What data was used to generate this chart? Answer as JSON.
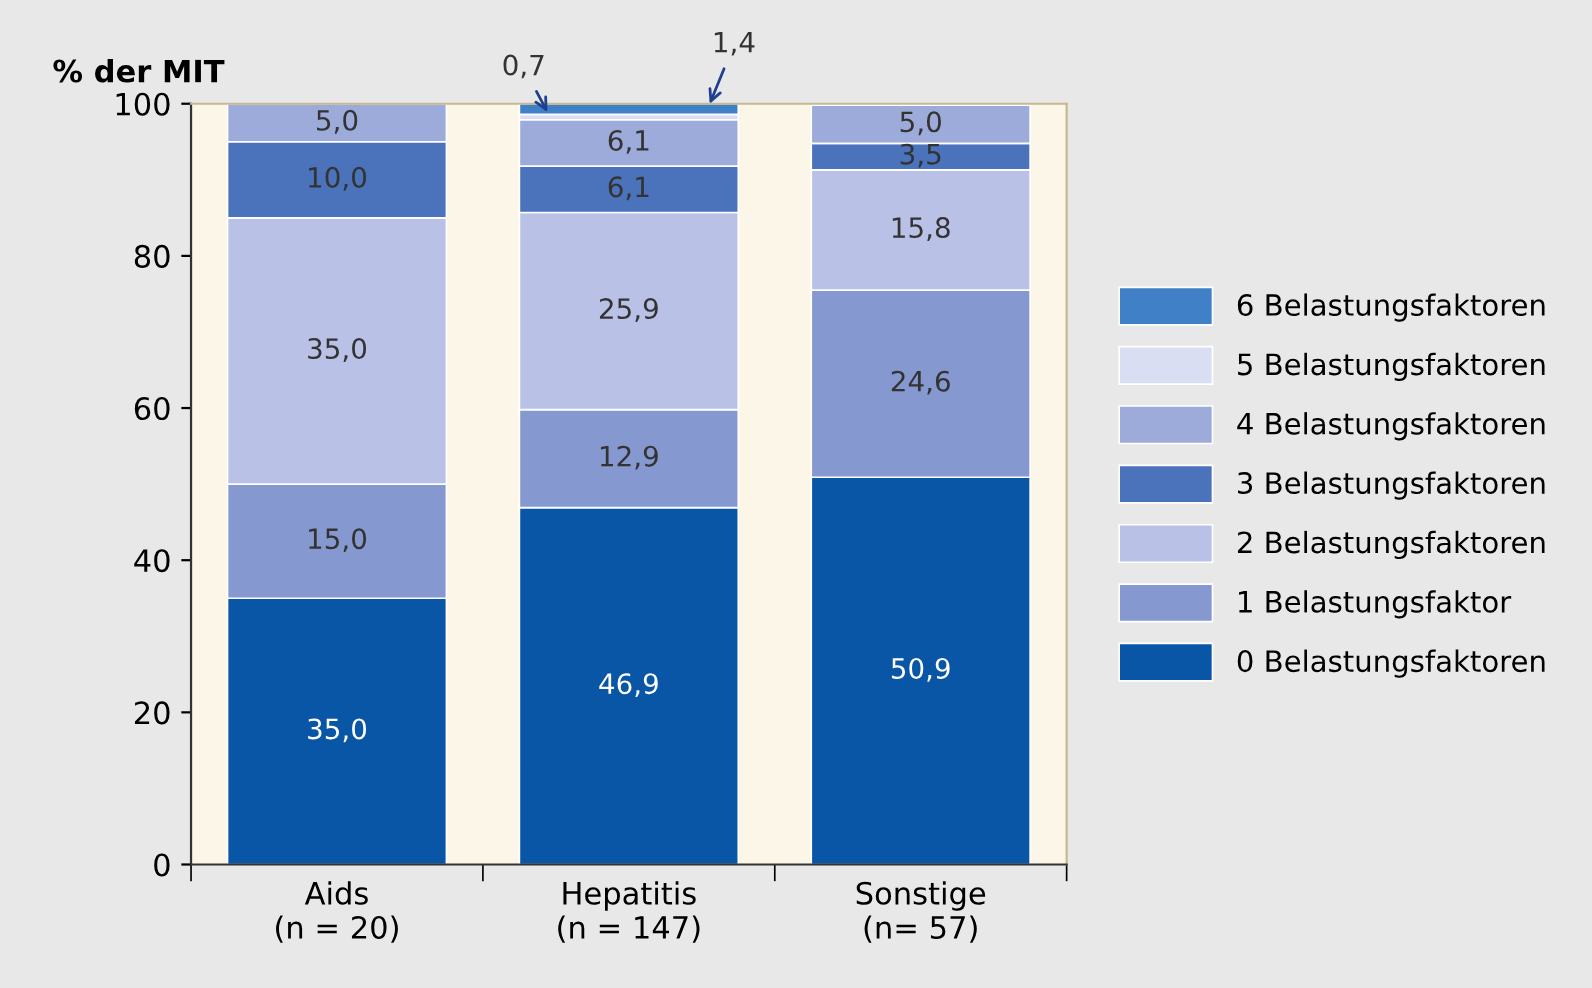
{
  "chart_data": {
    "type": "bar",
    "stacked": true,
    "ylabel": "% der MIT",
    "categories": [
      "Aids\n(n = 20)",
      "Hepatitis\n(n = 147)",
      "Sonstige\n(n= 57)"
    ],
    "ylim": [
      0,
      100
    ],
    "yticks": [
      0,
      20,
      40,
      60,
      80,
      100
    ],
    "grid": false,
    "legend": "right",
    "series": [
      {
        "name": "0 Belastungsfaktoren",
        "color": "#0a56a6",
        "values": [
          35.0,
          46.9,
          50.9
        ],
        "value_labels": [
          "35,0",
          "46,9",
          "50,9"
        ]
      },
      {
        "name": "1 Belastungsfaktor",
        "color": "#8598cf",
        "values": [
          15.0,
          12.9,
          24.6
        ],
        "value_labels": [
          "15,0",
          "12,9",
          "24,6"
        ]
      },
      {
        "name": "2 Belastungsfaktoren",
        "color": "#b9c2e6",
        "values": [
          35.0,
          25.9,
          15.8
        ],
        "value_labels": [
          "35,0",
          "25,9",
          "15,8"
        ]
      },
      {
        "name": "3 Belastungsfaktoren",
        "color": "#4b73bc",
        "values": [
          10.0,
          6.1,
          3.5
        ],
        "value_labels": [
          "10,0",
          "6,1",
          "3,5"
        ]
      },
      {
        "name": "4 Belastungsfaktoren",
        "color": "#9cabd9",
        "values": [
          5.0,
          6.1,
          5.0
        ],
        "value_labels": [
          "5,0",
          "6,1",
          "5,0"
        ]
      },
      {
        "name": "5 Belastungsfaktoren",
        "color": "#d9def3",
        "values": [
          null,
          0.7,
          null
        ],
        "value_labels": [
          null,
          "0,7",
          null
        ]
      },
      {
        "name": "6 Belastungsfaktoren",
        "color": "#3f80c6",
        "values": [
          null,
          1.4,
          null
        ],
        "value_labels": [
          null,
          "1,4",
          null
        ]
      }
    ]
  }
}
